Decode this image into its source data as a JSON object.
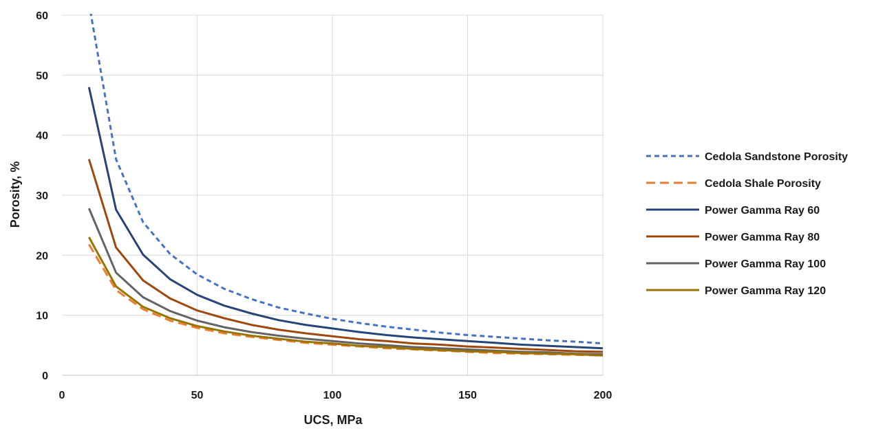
{
  "chart_data": {
    "type": "line",
    "title": "",
    "xlabel": "UCS, MPa",
    "ylabel": "Porosity, %",
    "xlim": [
      0,
      200
    ],
    "ylim": [
      0,
      60
    ],
    "xticks": [
      0,
      50,
      100,
      150,
      200
    ],
    "yticks": [
      0,
      10,
      20,
      30,
      40,
      50,
      60
    ],
    "xtick_labels": [
      "0",
      "50",
      "100",
      "150",
      "200"
    ],
    "ytick_labels": [
      "0",
      "10",
      "20",
      "30",
      "40",
      "50",
      "60"
    ],
    "grid": "vertical and horizontal",
    "legend_position": "right",
    "x": [
      10,
      20,
      30,
      40,
      50,
      60,
      70,
      80,
      90,
      100,
      110,
      120,
      130,
      140,
      150,
      160,
      170,
      180,
      190,
      200
    ],
    "series": [
      {
        "name": "Cedola Sandstone Porosity",
        "color": "#4472C4",
        "dash": "dotted",
        "values": [
          62,
          36,
          25.5,
          20.2,
          16.8,
          14.4,
          12.7,
          11.3,
          10.3,
          9.4,
          8.7,
          8.1,
          7.6,
          7.1,
          6.7,
          6.4,
          6.1,
          5.8,
          5.6,
          5.3
        ]
      },
      {
        "name": "Cedola Shale Porosity",
        "color": "#ED7D31",
        "dash": "dashed",
        "values": [
          21.8,
          14.2,
          11.0,
          9.1,
          7.9,
          7.0,
          6.4,
          5.9,
          5.4,
          5.1,
          4.8,
          4.5,
          4.3,
          4.1,
          3.9,
          3.7,
          3.6,
          3.5,
          3.4,
          3.3
        ]
      },
      {
        "name": "Power Gamma Ray 60",
        "color": "#264478",
        "dash": "solid",
        "values": [
          48,
          27.6,
          20.1,
          16.0,
          13.4,
          11.6,
          10.3,
          9.2,
          8.4,
          7.8,
          7.2,
          6.7,
          6.3,
          6.0,
          5.7,
          5.4,
          5.1,
          4.9,
          4.7,
          4.5
        ]
      },
      {
        "name": "Power Gamma Ray 80",
        "color": "#9E480E",
        "dash": "solid",
        "values": [
          36,
          21.3,
          15.8,
          12.8,
          10.8,
          9.5,
          8.4,
          7.6,
          7.0,
          6.5,
          6.0,
          5.7,
          5.3,
          5.1,
          4.8,
          4.6,
          4.4,
          4.2,
          4.0,
          3.9
        ]
      },
      {
        "name": "Power Gamma Ray 100",
        "color": "#636363",
        "dash": "solid",
        "values": [
          27.8,
          17.1,
          13.0,
          10.7,
          9.1,
          8.0,
          7.2,
          6.6,
          6.1,
          5.7,
          5.3,
          5.0,
          4.7,
          4.5,
          4.3,
          4.1,
          3.9,
          3.8,
          3.6,
          3.5
        ]
      },
      {
        "name": "Power Gamma Ray 120",
        "color": "#997300",
        "dash": "solid",
        "values": [
          23,
          14.8,
          11.4,
          9.5,
          8.2,
          7.3,
          6.6,
          6.1,
          5.6,
          5.3,
          4.9,
          4.7,
          4.4,
          4.2,
          4.0,
          3.9,
          3.7,
          3.6,
          3.5,
          3.3
        ]
      }
    ]
  }
}
